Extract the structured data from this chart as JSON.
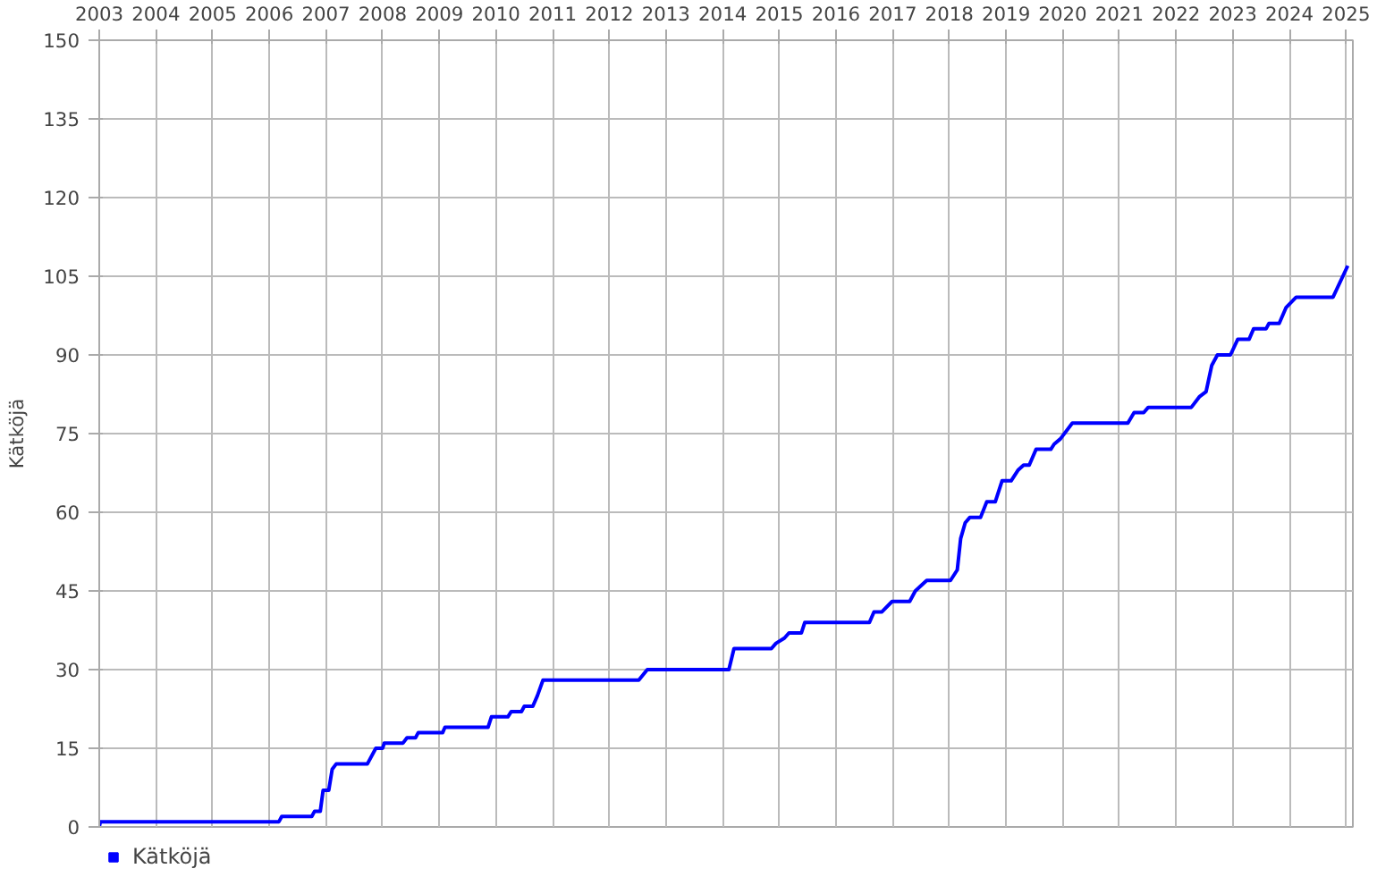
{
  "chart_data": {
    "type": "line",
    "ylabel": "Kätköjä",
    "xlim": [
      2003,
      2025.12
    ],
    "ylim": [
      0,
      150
    ],
    "xticks": [
      2003,
      2004,
      2005,
      2006,
      2007,
      2008,
      2009,
      2010,
      2011,
      2012,
      2013,
      2014,
      2015,
      2016,
      2017,
      2018,
      2019,
      2020,
      2021,
      2022,
      2023,
      2024,
      2025
    ],
    "yticks": [
      0,
      15,
      30,
      45,
      60,
      75,
      90,
      105,
      120,
      135,
      150
    ],
    "grid": true,
    "legend": "bottom left",
    "marker": "none",
    "line_style": "solid",
    "series": [
      {
        "name": "Kätköjä",
        "color": "#0000ff",
        "x": [
          2003.0,
          2003.02,
          2006.17,
          2006.22,
          2006.75,
          2006.8,
          2006.9,
          2006.95,
          2007.05,
          2007.11,
          2007.18,
          2007.73,
          2007.88,
          2008.0,
          2008.03,
          2008.36,
          2008.43,
          2008.58,
          2008.63,
          2009.06,
          2009.1,
          2009.86,
          2009.92,
          2010.21,
          2010.27,
          2010.45,
          2010.5,
          2010.65,
          2010.73,
          2010.83,
          2012.52,
          2012.67,
          2014.11,
          2014.2,
          2014.86,
          2014.94,
          2015.09,
          2015.17,
          2015.39,
          2015.45,
          2016.59,
          2016.67,
          2016.81,
          2016.99,
          2017.3,
          2017.4,
          2017.6,
          2018.02,
          2018.14,
          2018.2,
          2018.28,
          2018.36,
          2018.55,
          2018.66,
          2018.81,
          2018.93,
          2019.09,
          2019.21,
          2019.31,
          2019.41,
          2019.53,
          2019.79,
          2019.85,
          2019.96,
          2020.17,
          2021.15,
          2021.26,
          2021.43,
          2021.51,
          2022.27,
          2022.41,
          2022.53,
          2022.63,
          2022.73,
          2022.96,
          2023.09,
          2023.29,
          2023.37,
          2023.59,
          2023.64,
          2023.82,
          2023.94,
          2024.12,
          2024.77,
          2025.03
        ],
        "values": [
          0,
          1,
          1,
          2,
          2,
          3,
          3,
          7,
          7,
          11,
          12,
          12,
          15,
          15,
          16,
          16,
          17,
          17,
          18,
          18,
          19,
          19,
          21,
          21,
          22,
          22,
          23,
          23,
          25,
          28,
          28,
          30,
          30,
          34,
          34,
          35,
          36,
          37,
          37,
          39,
          39,
          41,
          41,
          43,
          43,
          45,
          47,
          47,
          49,
          55,
          58,
          59,
          59,
          62,
          62,
          66,
          66,
          68,
          69,
          69,
          72,
          72,
          73,
          74,
          77,
          77,
          79,
          79,
          80,
          80,
          82,
          83,
          88,
          90,
          90,
          93,
          93,
          95,
          95,
          96,
          96,
          99,
          101,
          101,
          107
        ]
      }
    ]
  }
}
